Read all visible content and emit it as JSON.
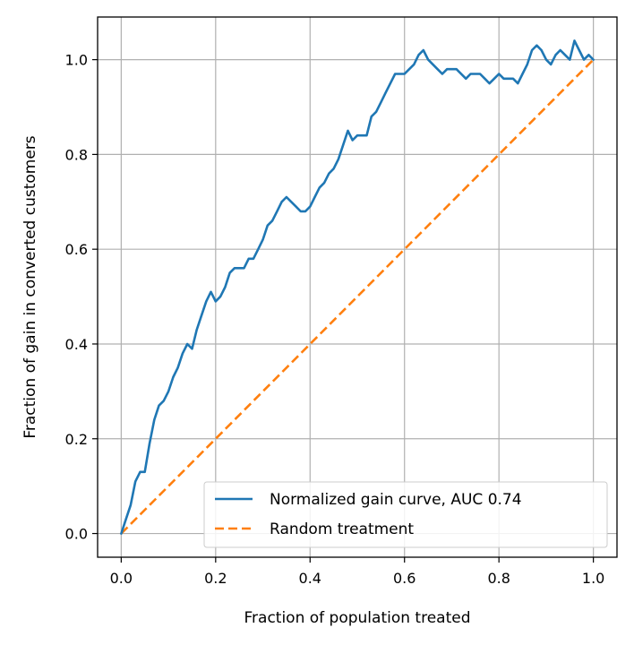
{
  "chart_data": {
    "type": "line",
    "title": "",
    "xlabel": "Fraction of population treated",
    "ylabel": "Fraction of gain in converted customers",
    "xlim": [
      -0.05,
      1.05
    ],
    "ylim": [
      -0.05,
      1.09
    ],
    "xticks": [
      0.0,
      0.2,
      0.4,
      0.6,
      0.8,
      1.0
    ],
    "yticks": [
      0.0,
      0.2,
      0.4,
      0.6,
      0.8,
      1.0
    ],
    "xtick_labels": [
      "0.0",
      "0.2",
      "0.4",
      "0.6",
      "0.8",
      "1.0"
    ],
    "ytick_labels": [
      "0.0",
      "0.2",
      "0.4",
      "0.6",
      "0.8",
      "1.0"
    ],
    "grid": true,
    "legend_position": "lower-right",
    "series": [
      {
        "name": "Normalized gain curve, AUC 0.74",
        "color": "#1f77b4",
        "style": "solid",
        "x": [
          0.0,
          0.01,
          0.02,
          0.03,
          0.04,
          0.05,
          0.06,
          0.07,
          0.08,
          0.09,
          0.1,
          0.11,
          0.12,
          0.13,
          0.14,
          0.15,
          0.16,
          0.17,
          0.18,
          0.19,
          0.2,
          0.21,
          0.22,
          0.23,
          0.24,
          0.25,
          0.26,
          0.27,
          0.28,
          0.29,
          0.3,
          0.31,
          0.32,
          0.33,
          0.34,
          0.35,
          0.36,
          0.37,
          0.38,
          0.39,
          0.4,
          0.41,
          0.42,
          0.43,
          0.44,
          0.45,
          0.46,
          0.47,
          0.48,
          0.49,
          0.5,
          0.51,
          0.52,
          0.53,
          0.54,
          0.55,
          0.56,
          0.57,
          0.58,
          0.59,
          0.6,
          0.61,
          0.62,
          0.63,
          0.64,
          0.65,
          0.66,
          0.67,
          0.68,
          0.69,
          0.7,
          0.71,
          0.72,
          0.73,
          0.74,
          0.75,
          0.76,
          0.77,
          0.78,
          0.79,
          0.8,
          0.81,
          0.82,
          0.83,
          0.84,
          0.85,
          0.86,
          0.87,
          0.88,
          0.89,
          0.9,
          0.91,
          0.92,
          0.93,
          0.94,
          0.95,
          0.96,
          0.97,
          0.98,
          0.99,
          1.0
        ],
        "y": [
          0.0,
          0.03,
          0.06,
          0.11,
          0.13,
          0.13,
          0.19,
          0.24,
          0.27,
          0.28,
          0.3,
          0.33,
          0.35,
          0.38,
          0.4,
          0.39,
          0.43,
          0.46,
          0.49,
          0.51,
          0.49,
          0.5,
          0.52,
          0.55,
          0.56,
          0.56,
          0.56,
          0.58,
          0.58,
          0.6,
          0.62,
          0.65,
          0.66,
          0.68,
          0.7,
          0.71,
          0.7,
          0.69,
          0.68,
          0.68,
          0.69,
          0.71,
          0.73,
          0.74,
          0.76,
          0.77,
          0.79,
          0.82,
          0.85,
          0.83,
          0.84,
          0.84,
          0.84,
          0.88,
          0.89,
          0.91,
          0.93,
          0.95,
          0.97,
          0.97,
          0.97,
          0.98,
          0.99,
          1.01,
          1.02,
          1.0,
          0.99,
          0.98,
          0.97,
          0.98,
          0.98,
          0.98,
          0.97,
          0.96,
          0.97,
          0.97,
          0.97,
          0.96,
          0.95,
          0.96,
          0.97,
          0.96,
          0.96,
          0.96,
          0.95,
          0.97,
          0.99,
          1.02,
          1.03,
          1.02,
          1.0,
          0.99,
          1.01,
          1.02,
          1.01,
          1.0,
          1.04,
          1.02,
          1.0,
          1.01,
          1.0
        ]
      },
      {
        "name": "Random treatment",
        "color": "#ff7f0e",
        "style": "dashed",
        "x": [
          0.0,
          1.0
        ],
        "y": [
          0.0,
          1.0
        ]
      }
    ]
  }
}
